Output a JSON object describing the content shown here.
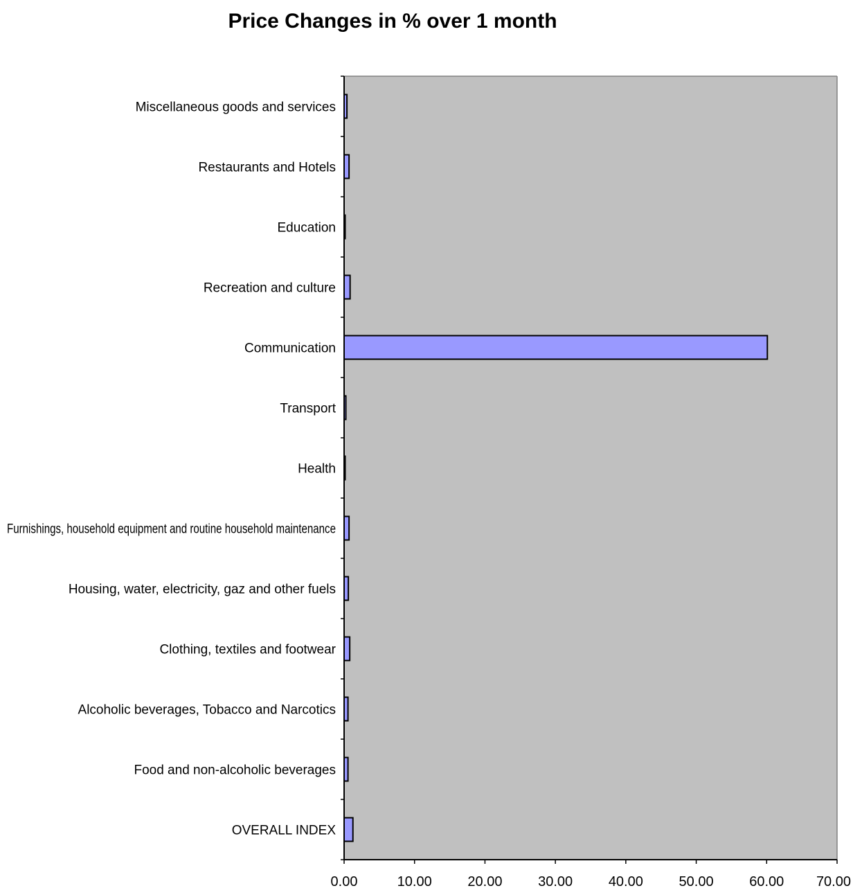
{
  "chart_data": {
    "type": "bar",
    "orientation": "horizontal",
    "title": "Price Changes in %  over 1 month",
    "xlabel": "",
    "ylabel": "",
    "xlim": [
      0,
      70
    ],
    "x_tick_step": 10,
    "x_tick_labels": [
      "0.00",
      "10.00",
      "20.00",
      "30.00",
      "40.00",
      "50.00",
      "60.00",
      "70.00"
    ],
    "grid": false,
    "legend": "none",
    "categories": [
      "Miscellaneous goods and services",
      "Restaurants and Hotels",
      "Education",
      "Recreation and culture",
      "Communication",
      "Transport",
      "Health",
      "Furnishings, household equipment and routine household maintenance",
      "Housing, water, electricity, gaz and other fuels",
      "Clothing, textiles and footwear",
      "Alcoholic beverages, Tobacco and Narcotics",
      "Food and non-alcoholic beverages",
      "OVERALL INDEX"
    ],
    "values": [
      0.4,
      0.7,
      0.1,
      0.85,
      60.1,
      0.25,
      0.05,
      0.7,
      0.6,
      0.8,
      0.55,
      0.55,
      1.25
    ],
    "colors": {
      "bar_fill": "#9999ff",
      "bar_stroke": "#000000",
      "plot_background": "#c0c0c0",
      "axis": "#000000"
    }
  }
}
